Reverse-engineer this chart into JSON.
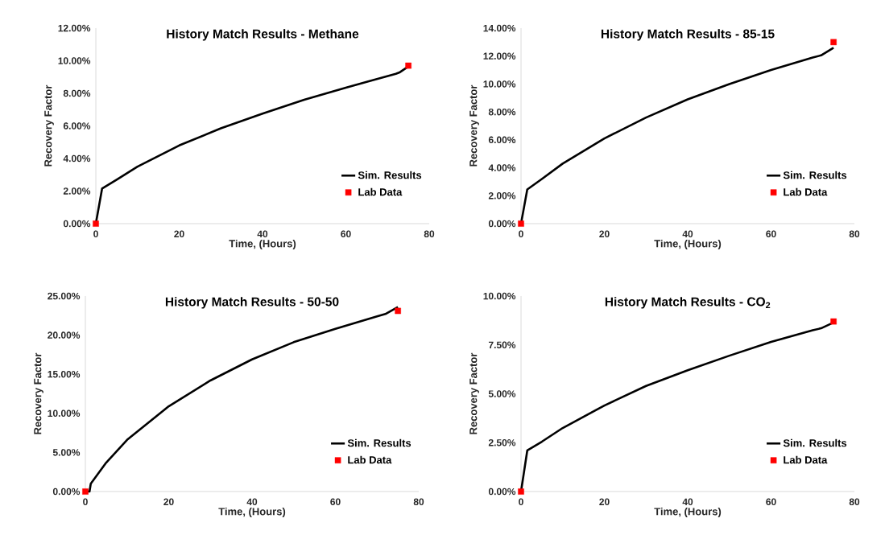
{
  "chart_data": [
    {
      "type": "line",
      "title": "History Match Results - Methane",
      "xlabel": "Time, (Hours)",
      "ylabel": "Recovery Factor",
      "xlim": [
        0,
        80
      ],
      "xticks": [
        0,
        20,
        40,
        60,
        80
      ],
      "ylim": [
        0,
        12
      ],
      "yticks": [
        {
          "value": 0,
          "label": "0.00%"
        },
        {
          "value": 2,
          "label": "2.00%"
        },
        {
          "value": 4,
          "label": "4.00%"
        },
        {
          "value": 6,
          "label": "6.00%"
        },
        {
          "value": 8,
          "label": "8.00%"
        },
        {
          "value": 10,
          "label": "10.00%"
        },
        {
          "value": 12,
          "label": "12.00%"
        }
      ],
      "legend": "right",
      "grid": false,
      "series": [
        {
          "name": "Sim. Results",
          "color": "#000000",
          "line_style": "solid",
          "x": [
            0,
            1.5,
            5,
            10,
            20,
            30,
            40,
            50,
            60,
            65,
            72,
            73,
            75
          ],
          "values": [
            0,
            2.15,
            2.7,
            3.5,
            4.8,
            5.85,
            6.75,
            7.6,
            8.35,
            8.7,
            9.2,
            9.3,
            9.65
          ]
        },
        {
          "name": "Lab Data",
          "type": "scatter",
          "color": "#ff0000",
          "marker": "square",
          "x": [
            0,
            75
          ],
          "values": [
            0,
            9.7
          ]
        }
      ]
    },
    {
      "type": "line",
      "title": "History Match Results - 85-15",
      "xlabel": "Time, (Hours)",
      "ylabel": "Recovery Factor",
      "xlim": [
        0,
        80
      ],
      "xticks": [
        0,
        20,
        40,
        60,
        80
      ],
      "ylim": [
        0,
        14
      ],
      "yticks": [
        {
          "value": 0,
          "label": "0.00%"
        },
        {
          "value": 2,
          "label": "2.00%"
        },
        {
          "value": 4,
          "label": "4.00%"
        },
        {
          "value": 6,
          "label": "6.00%"
        },
        {
          "value": 8,
          "label": "8.00%"
        },
        {
          "value": 10,
          "label": "10.00%"
        },
        {
          "value": 12,
          "label": "12.00%"
        },
        {
          "value": 14,
          "label": "14.00%"
        }
      ],
      "legend": "right",
      "grid": false,
      "series": [
        {
          "name": "Sim. Results",
          "color": "#000000",
          "line_style": "solid",
          "x": [
            0,
            1.5,
            5,
            10,
            20,
            30,
            40,
            50,
            60,
            70,
            72,
            75
          ],
          "values": [
            0,
            2.45,
            3.2,
            4.3,
            6.1,
            7.6,
            8.9,
            10.0,
            11.0,
            11.9,
            12.05,
            12.6
          ]
        },
        {
          "name": "Lab Data",
          "type": "scatter",
          "color": "#ff0000",
          "marker": "square",
          "x": [
            0,
            75
          ],
          "values": [
            0,
            13.0
          ]
        }
      ]
    },
    {
      "type": "line",
      "title": "History Match Results - 50-50",
      "xlabel": "Time, (Hours)",
      "ylabel": "Recovery Factor",
      "xlim": [
        0,
        80
      ],
      "xticks": [
        0,
        20,
        40,
        60,
        80
      ],
      "ylim": [
        0,
        25
      ],
      "yticks": [
        {
          "value": 0,
          "label": "0.00%"
        },
        {
          "value": 5,
          "label": "5.00%"
        },
        {
          "value": 10,
          "label": "10.00%"
        },
        {
          "value": 15,
          "label": "15.00%"
        },
        {
          "value": 20,
          "label": "20.00%"
        },
        {
          "value": 25,
          "label": "25.00%"
        }
      ],
      "legend": "right",
      "grid": false,
      "series": [
        {
          "name": "Sim. Results",
          "color": "#000000",
          "line_style": "solid",
          "x": [
            0,
            1,
            1.3,
            5,
            10,
            20,
            30,
            40,
            50,
            60,
            70,
            72,
            75
          ],
          "values": [
            0,
            0,
            1.0,
            3.7,
            6.6,
            10.9,
            14.2,
            16.9,
            19.1,
            20.8,
            22.4,
            22.7,
            23.6
          ]
        },
        {
          "name": "Lab Data",
          "type": "scatter",
          "color": "#ff0000",
          "marker": "square",
          "x": [
            0,
            75
          ],
          "values": [
            0,
            23.1
          ]
        }
      ]
    },
    {
      "type": "line",
      "title": "History Match Results - CO$_{2}$",
      "xlabel": "Time, (Hours)",
      "ylabel": "Recovery Factor",
      "xlim": [
        0,
        80
      ],
      "xticks": [
        0,
        20,
        40,
        60,
        80
      ],
      "ylim": [
        0,
        10
      ],
      "yticks": [
        {
          "value": 0,
          "label": "0.00%"
        },
        {
          "value": 2.5,
          "label": "2.50%"
        },
        {
          "value": 5,
          "label": "5.00%"
        },
        {
          "value": 7.5,
          "label": "7.50%"
        },
        {
          "value": 10,
          "label": "10.00%"
        }
      ],
      "legend": "right",
      "grid": false,
      "series": [
        {
          "name": "Sim. Results",
          "color": "#000000",
          "line_style": "solid",
          "x": [
            0,
            1.5,
            5,
            10,
            20,
            30,
            40,
            50,
            60,
            70,
            72,
            75
          ],
          "values": [
            0,
            2.1,
            2.55,
            3.25,
            4.4,
            5.4,
            6.2,
            6.95,
            7.65,
            8.25,
            8.35,
            8.65
          ]
        },
        {
          "name": "Lab Data",
          "type": "scatter",
          "color": "#ff0000",
          "marker": "square",
          "x": [
            0,
            75
          ],
          "values": [
            0,
            8.7
          ]
        }
      ]
    }
  ]
}
